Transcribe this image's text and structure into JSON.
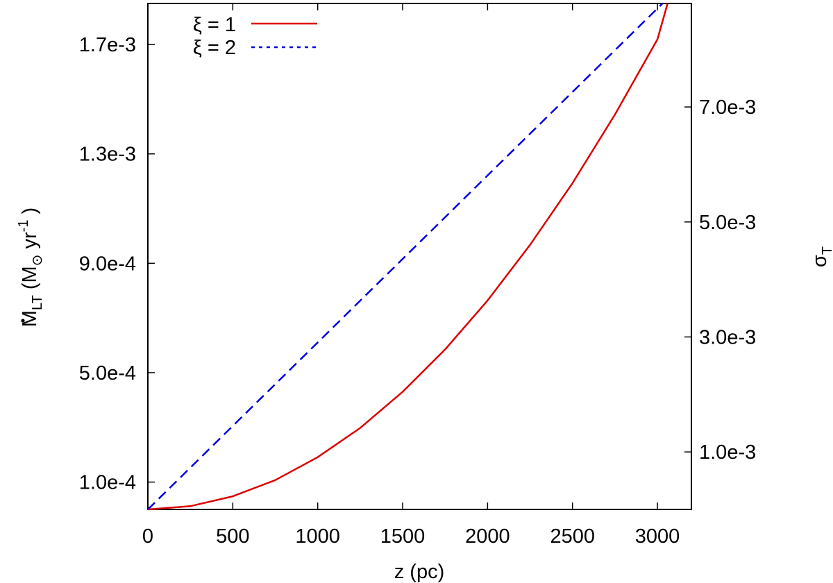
{
  "chart_data": {
    "type": "line",
    "title": "",
    "xlabel": "z (pc)",
    "ylabel_left": {
      "base": "M",
      "sub": "LT",
      "open": "(M",
      "sun": "⊙",
      "unit": "yr",
      "sup": "-1",
      "close": ")"
    },
    "ylabel_right": {
      "base": "σ",
      "sub": "T"
    },
    "xlim": [
      0,
      3200
    ],
    "ylim_left": [
      0.0,
      0.00185
    ],
    "ylim_right": [
      0.0,
      0.0088
    ],
    "x_ticks": [
      0,
      500,
      1000,
      1500,
      2000,
      2500,
      3000
    ],
    "x_tick_labels": [
      "0",
      "500",
      "1000",
      "1500",
      "2000",
      "2500",
      "3000"
    ],
    "y_left_ticks": [
      0.0001,
      0.0005,
      0.0009,
      0.0013,
      0.0017
    ],
    "y_left_tick_labels": [
      "1.0e-4",
      "5.0e-4",
      "9.0e-4",
      "1.3e-3",
      "1.7e-3"
    ],
    "y_right_ticks": [
      0.001,
      0.003,
      0.005,
      0.007
    ],
    "y_right_tick_labels": [
      "1.0e-3",
      "3.0e-3",
      "5.0e-3",
      "7.0e-3"
    ],
    "legend_position": "top-left",
    "series": [
      {
        "name": "ξ = 1",
        "color": "#dd0000",
        "style": "solid",
        "axis": "left",
        "x": [
          0,
          250,
          500,
          750,
          1000,
          1250,
          1500,
          1750,
          2000,
          2250,
          2500,
          2750,
          3000,
          3060
        ],
        "y": [
          0.0,
          1.2e-05,
          4.8e-05,
          0.000107,
          0.000191,
          0.000298,
          0.00043,
          0.000585,
          0.000764,
          0.000967,
          0.001193,
          0.001444,
          0.001719,
          0.00185
        ]
      },
      {
        "name": "ξ = 2",
        "color": "#0000dd",
        "style": "dashed-dotted",
        "axis": "left",
        "x": [
          0,
          3030
        ],
        "y": [
          0.0,
          0.00185
        ]
      }
    ]
  }
}
